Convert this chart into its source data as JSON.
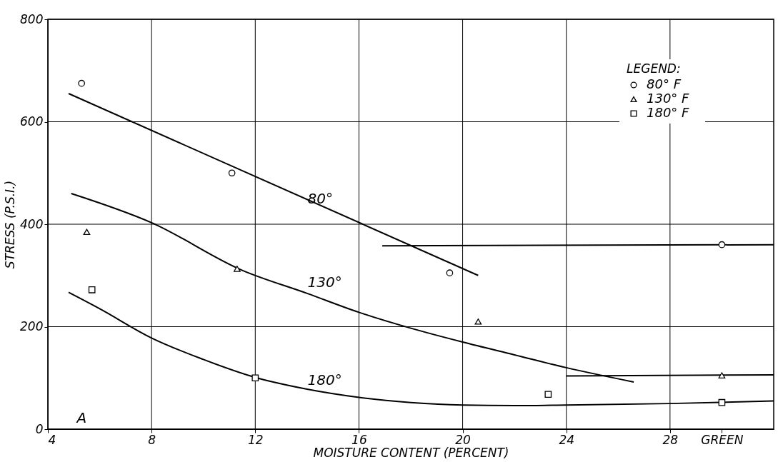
{
  "chart_data": {
    "type": "scatter",
    "xlabel": "MOISTURE CONTENT (PERCENT)",
    "ylabel": "STRESS (P.S.I.)",
    "legend_title": "LEGEND:",
    "xlim": [
      4,
      32
    ],
    "ylim": [
      0,
      800
    ],
    "xticks": [
      4,
      8,
      12,
      16,
      20,
      24,
      28,
      {
        "value": 30,
        "label": "GREEN"
      }
    ],
    "yticks": [
      0,
      200,
      400,
      600,
      800
    ],
    "grid": true,
    "legend": "top right",
    "series": [
      {
        "name": "80° F",
        "marker": "circle",
        "color": "#000000",
        "x": [
          5.3,
          11.1,
          19.5,
          30
        ],
        "values": [
          675,
          500,
          305,
          360
        ]
      },
      {
        "name": "130° F",
        "marker": "triangle",
        "color": "#000000",
        "x": [
          5.5,
          11.3,
          20.6,
          30
        ],
        "values": [
          385,
          313,
          210,
          105
        ]
      },
      {
        "name": "180° F",
        "marker": "square",
        "color": "#000000",
        "x": [
          5.7,
          12,
          23.3,
          30
        ],
        "values": [
          272,
          100,
          68,
          52
        ]
      },
      {
        "type": "line",
        "color": "#000000",
        "x": [
          4.8,
          20.6
        ],
        "values": [
          655,
          300
        ]
      },
      {
        "type": "line",
        "color": "#000000",
        "x": [
          16.9,
          32
        ],
        "values": [
          358,
          360
        ]
      },
      {
        "type": "line",
        "color": "#000000",
        "x": [
          4.9,
          8,
          11.5,
          14,
          16,
          18,
          20,
          22,
          24,
          26.6
        ],
        "values": [
          460,
          403,
          310,
          265,
          228,
          197,
          170,
          145,
          120,
          92
        ]
      },
      {
        "type": "line",
        "color": "#000000",
        "x": [
          24,
          32
        ],
        "values": [
          104,
          106
        ]
      },
      {
        "type": "line",
        "color": "#000000",
        "x": [
          4.8,
          6,
          8,
          10,
          12,
          14,
          16,
          18,
          20,
          22,
          24,
          28,
          32
        ],
        "values": [
          267,
          235,
          178,
          136,
          101,
          78,
          62,
          52,
          47,
          46,
          47,
          50,
          55
        ]
      }
    ],
    "annotations": [
      "80°",
      "130°",
      "180°",
      "A"
    ]
  }
}
